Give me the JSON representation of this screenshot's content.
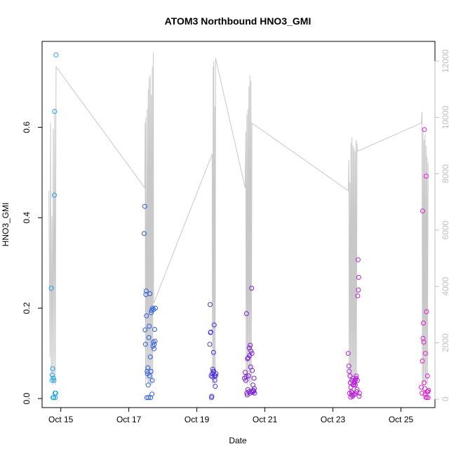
{
  "chart_data": {
    "type": "scatter",
    "title": "ATOM3 Northbound HNO3_GMI",
    "xlabel": "Date",
    "ylabel": "HNO3_GMI",
    "x_ticks": [
      "Oct 15",
      "Oct 17",
      "Oct 19",
      "Oct 21",
      "Oct 23",
      "Oct 25"
    ],
    "x_tick_days": [
      15,
      17,
      19,
      21,
      23,
      25
    ],
    "xlim_days": [
      14.45,
      26.0
    ],
    "ylim": [
      -0.02,
      0.79
    ],
    "y_ticks": [
      "0.0",
      "0.2",
      "0.4",
      "0.6"
    ],
    "y_tick_values": [
      0,
      0.2,
      0.4,
      0.6
    ],
    "y2lim": [
      -300,
      12700
    ],
    "y2_ticks": [
      "0",
      "2000",
      "4000",
      "6000",
      "8000",
      "10000",
      "12000"
    ],
    "y2_tick_values": [
      0,
      2000,
      4000,
      6000,
      8000,
      10000,
      12000
    ],
    "grid": false,
    "point_series": [
      {
        "color": "#1fa3e8",
        "days": [
          14.72,
          14.74,
          14.75,
          14.76,
          14.77,
          14.78,
          14.79,
          14.8,
          14.81,
          14.82,
          14.83,
          14.84,
          14.85,
          14.86
        ],
        "values": [
          0.244,
          0.04,
          0.052,
          0.066,
          0.002,
          0.045,
          0.002,
          0.04,
          0.45,
          0.635,
          0.012,
          0.002,
          0.012,
          0.76
        ]
      },
      {
        "color": "#2a5ce0",
        "days": [
          17.45,
          17.47,
          17.48,
          17.49,
          17.5,
          17.51,
          17.52,
          17.53,
          17.54,
          17.55,
          17.56,
          17.57,
          17.58,
          17.59,
          17.6,
          17.61,
          17.62,
          17.63,
          17.64,
          17.65,
          17.66,
          17.67,
          17.68,
          17.69,
          17.7,
          17.71,
          17.72,
          17.73,
          17.74,
          17.75,
          17.76,
          17.77,
          17.78
        ],
        "values": [
          0.365,
          0.425,
          0.152,
          0.12,
          0.23,
          0.238,
          0.183,
          0.002,
          0.06,
          0.055,
          0.068,
          0.03,
          0.002,
          0.135,
          0.16,
          0.05,
          0.232,
          0.092,
          0.002,
          0.06,
          0.19,
          0.195,
          0.01,
          0.04,
          0.2,
          0.116,
          0.125,
          0.197,
          0.11,
          0.12,
          0.153,
          0.127,
          0.2
        ]
      },
      {
        "color": "#4d2ee0",
        "days": [
          19.38,
          19.39,
          19.4,
          19.41,
          19.42,
          19.43,
          19.44,
          19.45,
          19.46,
          19.47,
          19.48,
          19.49,
          19.5,
          19.51,
          19.52,
          19.53,
          19.54,
          19.55,
          19.56
        ],
        "values": [
          0.12,
          0.208,
          0.146,
          0.147,
          0.05,
          0.002,
          0.005,
          0.055,
          0.048,
          0.065,
          0.06,
          0.102,
          0.06,
          0.163,
          0.05,
          0.04,
          0.027,
          0.05,
          0.055
        ]
      },
      {
        "color": "#7a1ed8",
        "days": [
          20.4,
          20.42,
          20.44,
          20.45,
          20.46,
          20.47,
          20.48,
          20.49,
          20.5,
          20.51,
          20.52,
          20.53,
          20.54,
          20.55,
          20.56,
          20.57,
          20.58,
          20.59,
          20.6,
          20.61,
          20.62,
          20.63,
          20.64,
          20.65,
          20.66,
          20.67,
          20.68,
          20.69,
          20.7
        ],
        "values": [
          0.045,
          0.058,
          0.04,
          0.048,
          0.188,
          0.012,
          0.008,
          0.088,
          0.02,
          0.09,
          0.05,
          0.015,
          0.112,
          0.095,
          0.012,
          0.118,
          0.07,
          0.105,
          0.016,
          0.244,
          0.1,
          0.062,
          0.014,
          0.03,
          0.018,
          0.016,
          0.045,
          0.022,
          0.012
        ]
      },
      {
        "color": "#b81ed8",
        "days": [
          23.45,
          23.47,
          23.48,
          23.49,
          23.5,
          23.51,
          23.52,
          23.53,
          23.54,
          23.55,
          23.56,
          23.57,
          23.58,
          23.59,
          23.6,
          23.61,
          23.62,
          23.63,
          23.64,
          23.65,
          23.66,
          23.67,
          23.68,
          23.69,
          23.7,
          23.71,
          23.72,
          23.73,
          23.74,
          23.75,
          23.76,
          23.77,
          23.78
        ],
        "values": [
          0.1,
          0.072,
          0.06,
          0.012,
          0.05,
          0.035,
          0.003,
          0.025,
          0.015,
          0.008,
          0.04,
          0.013,
          0.005,
          0.03,
          0.045,
          0.008,
          0.03,
          0.035,
          0.01,
          0.04,
          0.03,
          0.042,
          0.045,
          0.05,
          0.015,
          0.02,
          0.04,
          0.227,
          0.307,
          0.24,
          0.268,
          0.005,
          0.012
        ]
      },
      {
        "color": "#e01ed8",
        "days": [
          25.6,
          25.62,
          25.63,
          25.64,
          25.65,
          25.66,
          25.67,
          25.68,
          25.69,
          25.7,
          25.71,
          25.72,
          25.73,
          25.74,
          25.75,
          25.76,
          25.77,
          25.78,
          25.79,
          25.8,
          25.81
        ],
        "values": [
          0.025,
          0.012,
          0.083,
          0.415,
          0.133,
          0.167,
          0.125,
          0.035,
          0.595,
          0.022,
          0.01,
          0.1,
          0.003,
          0.492,
          0.192,
          0.002,
          0.015,
          0.05,
          0.015,
          0.002,
          0.018
        ]
      }
    ],
    "line_series": {
      "color": "#c8c8c8",
      "points": [
        [
          14.65,
          7400
        ],
        [
          14.68,
          1500
        ],
        [
          14.7,
          9800
        ],
        [
          14.72,
          800
        ],
        [
          14.74,
          6500
        ],
        [
          14.76,
          500
        ],
        [
          14.78,
          9600
        ],
        [
          14.8,
          600
        ],
        [
          14.82,
          10300
        ],
        [
          14.84,
          500
        ],
        [
          14.86,
          11800
        ],
        [
          17.47,
          7500
        ],
        [
          17.48,
          9800
        ],
        [
          17.49,
          500
        ],
        [
          17.5,
          10000
        ],
        [
          17.52,
          700
        ],
        [
          17.54,
          10300
        ],
        [
          17.55,
          600
        ],
        [
          17.57,
          11000
        ],
        [
          17.58,
          500
        ],
        [
          17.6,
          11400
        ],
        [
          17.61,
          600
        ],
        [
          17.63,
          11500
        ],
        [
          17.64,
          500
        ],
        [
          17.66,
          10800
        ],
        [
          17.67,
          500
        ],
        [
          17.69,
          11800
        ],
        [
          17.7,
          600
        ],
        [
          17.72,
          12300
        ],
        [
          17.73,
          3400
        ],
        [
          19.45,
          8700
        ],
        [
          19.46,
          500
        ],
        [
          19.48,
          11800
        ],
        [
          19.49,
          600
        ],
        [
          19.5,
          12000
        ],
        [
          19.51,
          500
        ],
        [
          19.53,
          10400
        ],
        [
          19.54,
          600
        ],
        [
          19.55,
          12100
        ],
        [
          20.42,
          7500
        ],
        [
          20.44,
          9500
        ],
        [
          20.45,
          600
        ],
        [
          20.47,
          10100
        ],
        [
          20.48,
          500
        ],
        [
          20.5,
          10300
        ],
        [
          20.51,
          600
        ],
        [
          20.53,
          11100
        ],
        [
          20.54,
          500
        ],
        [
          20.56,
          11500
        ],
        [
          20.57,
          600
        ],
        [
          20.59,
          11300
        ],
        [
          20.6,
          500
        ],
        [
          20.62,
          9800
        ],
        [
          23.45,
          7400
        ],
        [
          23.47,
          8500
        ],
        [
          23.48,
          500
        ],
        [
          23.5,
          7700
        ],
        [
          23.51,
          500
        ],
        [
          23.53,
          9100
        ],
        [
          23.54,
          600
        ],
        [
          23.56,
          9300
        ],
        [
          23.57,
          500
        ],
        [
          23.59,
          9000
        ],
        [
          23.6,
          600
        ],
        [
          23.62,
          8900
        ],
        [
          23.63,
          500
        ],
        [
          23.65,
          8800
        ],
        [
          23.66,
          600
        ],
        [
          23.68,
          9200
        ],
        [
          23.69,
          500
        ],
        [
          23.71,
          9100
        ],
        [
          23.72,
          8800
        ],
        [
          25.6,
          9800
        ],
        [
          25.62,
          10200
        ],
        [
          25.63,
          500
        ],
        [
          25.65,
          9600
        ],
        [
          25.66,
          500
        ],
        [
          25.68,
          9200
        ],
        [
          25.69,
          600
        ],
        [
          25.71,
          9400
        ],
        [
          25.72,
          500
        ],
        [
          25.74,
          9000
        ],
        [
          25.75,
          600
        ],
        [
          25.77,
          8600
        ],
        [
          25.78,
          500
        ],
        [
          25.8,
          8400
        ]
      ]
    }
  }
}
